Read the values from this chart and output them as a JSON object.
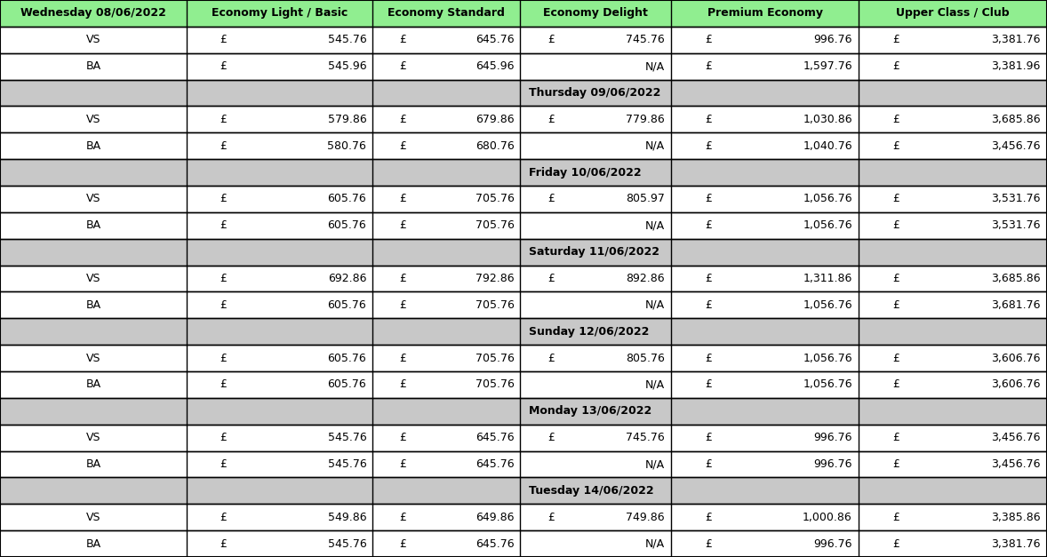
{
  "days": [
    {
      "label": "Wednesday 08/06/2022",
      "is_first": true,
      "rows": [
        {
          "airline": "VS",
          "eco_light": "545.76",
          "eco_std": "645.76",
          "eco_del": "745.76",
          "prem_eco": "996.76",
          "upper": "3,381.76"
        },
        {
          "airline": "BA",
          "eco_light": "545.96",
          "eco_std": "645.96",
          "eco_del": "N/A",
          "prem_eco": "1,597.76",
          "upper": "3,381.96"
        }
      ]
    },
    {
      "label": "Thursday 09/06/2022",
      "is_first": false,
      "rows": [
        {
          "airline": "VS",
          "eco_light": "579.86",
          "eco_std": "679.86",
          "eco_del": "779.86",
          "prem_eco": "1,030.86",
          "upper": "3,685.86"
        },
        {
          "airline": "BA",
          "eco_light": "580.76",
          "eco_std": "680.76",
          "eco_del": "N/A",
          "prem_eco": "1,040.76",
          "upper": "3,456.76"
        }
      ]
    },
    {
      "label": "Friday 10/06/2022",
      "is_first": false,
      "rows": [
        {
          "airline": "VS",
          "eco_light": "605.76",
          "eco_std": "705.76",
          "eco_del": "805.97",
          "prem_eco": "1,056.76",
          "upper": "3,531.76"
        },
        {
          "airline": "BA",
          "eco_light": "605.76",
          "eco_std": "705.76",
          "eco_del": "N/A",
          "prem_eco": "1,056.76",
          "upper": "3,531.76"
        }
      ]
    },
    {
      "label": "Saturday 11/06/2022",
      "is_first": false,
      "rows": [
        {
          "airline": "VS",
          "eco_light": "692.86",
          "eco_std": "792.86",
          "eco_del": "892.86",
          "prem_eco": "1,311.86",
          "upper": "3,685.86"
        },
        {
          "airline": "BA",
          "eco_light": "605.76",
          "eco_std": "705.76",
          "eco_del": "N/A",
          "prem_eco": "1,056.76",
          "upper": "3,681.76"
        }
      ]
    },
    {
      "label": "Sunday 12/06/2022",
      "is_first": false,
      "rows": [
        {
          "airline": "VS",
          "eco_light": "605.76",
          "eco_std": "705.76",
          "eco_del": "805.76",
          "prem_eco": "1,056.76",
          "upper": "3,606.76"
        },
        {
          "airline": "BA",
          "eco_light": "605.76",
          "eco_std": "705.76",
          "eco_del": "N/A",
          "prem_eco": "1,056.76",
          "upper": "3,606.76"
        }
      ]
    },
    {
      "label": "Monday 13/06/2022",
      "is_first": false,
      "rows": [
        {
          "airline": "VS",
          "eco_light": "545.76",
          "eco_std": "645.76",
          "eco_del": "745.76",
          "prem_eco": "996.76",
          "upper": "3,456.76"
        },
        {
          "airline": "BA",
          "eco_light": "545.76",
          "eco_std": "645.76",
          "eco_del": "N/A",
          "prem_eco": "996.76",
          "upper": "3,456.76"
        }
      ]
    },
    {
      "label": "Tuesday 14/06/2022",
      "is_first": false,
      "rows": [
        {
          "airline": "VS",
          "eco_light": "549.86",
          "eco_std": "649.86",
          "eco_del": "749.86",
          "prem_eco": "1,000.86",
          "upper": "3,385.86"
        },
        {
          "airline": "BA",
          "eco_light": "545.76",
          "eco_std": "645.76",
          "eco_del": "N/A",
          "prem_eco": "996.76",
          "upper": "3,381.76"
        }
      ]
    }
  ],
  "header_bg": "#90EE90",
  "day_header_bg": "#C8C8C8",
  "col_headers": [
    "Economy Light / Basic",
    "Economy Standard",
    "Economy Delight",
    "Premium Economy",
    "Upper Class / Club"
  ],
  "first_col_header": "Wednesday 08/06/2022",
  "col_starts": [
    0.0,
    0.178,
    0.356,
    0.497,
    0.641,
    0.82
  ],
  "col_ends": [
    0.178,
    0.356,
    0.497,
    0.641,
    0.82,
    1.0
  ],
  "fields": [
    "eco_light",
    "eco_std",
    "eco_del",
    "prem_eco",
    "upper"
  ]
}
